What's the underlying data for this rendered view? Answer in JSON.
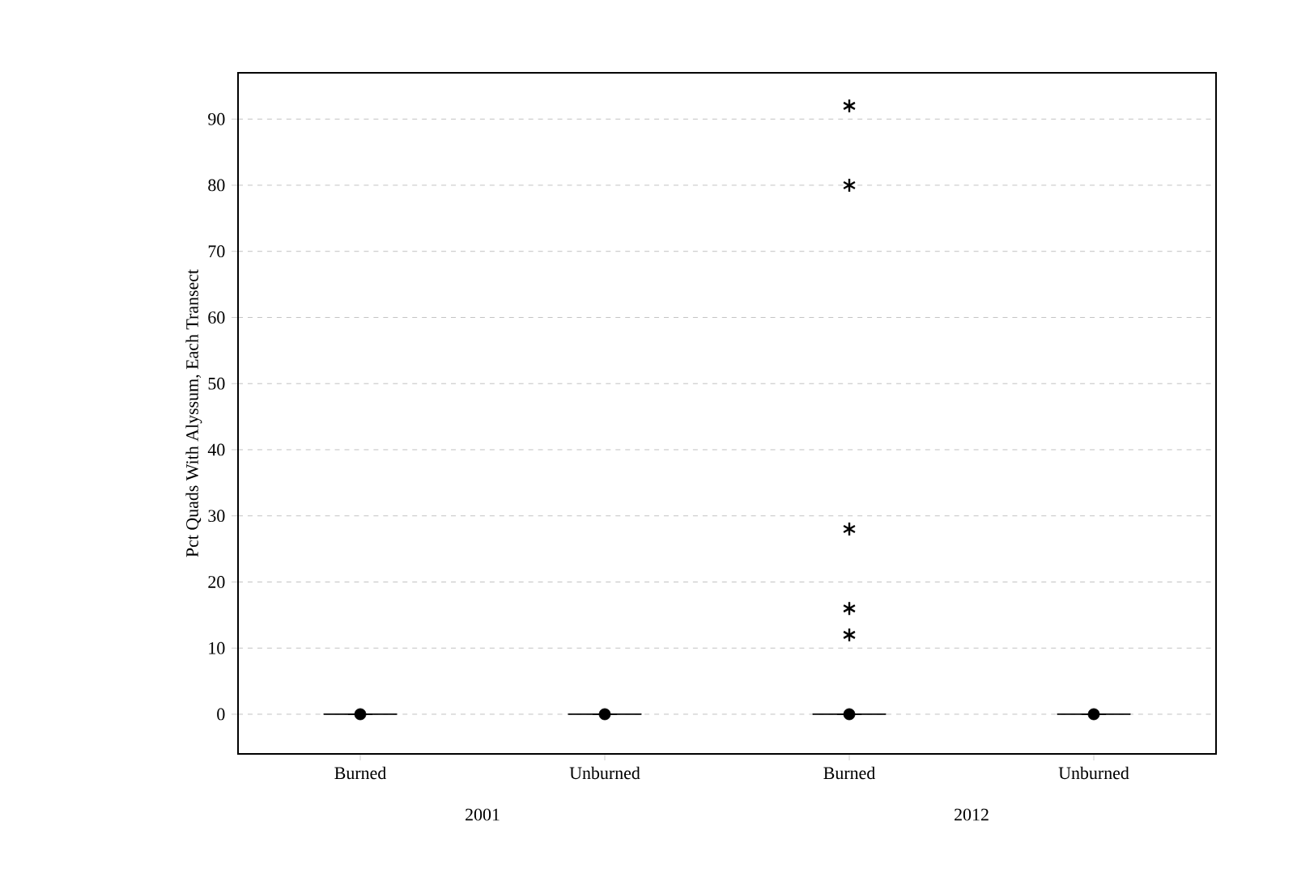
{
  "chart_data": {
    "type": "box",
    "ylabel": "Pct Quads With Alyssum, Each Transect",
    "categories": [
      "Burned",
      "Unburned",
      "Burned",
      "Unburned"
    ],
    "annotations": [
      "2001",
      "2012"
    ],
    "boxes": [
      {
        "low": 0,
        "q1": 0,
        "median": 0,
        "q3": 0,
        "high": 0,
        "mean": 0
      },
      {
        "low": 0,
        "q1": 0,
        "median": 0,
        "q3": 0,
        "high": 0,
        "mean": 0
      },
      {
        "low": 0,
        "q1": 0,
        "median": 0,
        "q3": 0,
        "high": 0,
        "mean": 0,
        "outliers": [
          92,
          80,
          28,
          16,
          12
        ]
      },
      {
        "low": 0,
        "q1": 0,
        "median": 0,
        "q3": 0,
        "high": 0,
        "mean": 0
      }
    ],
    "ylim": [
      -6,
      97
    ],
    "yticks": [
      0,
      10,
      20,
      30,
      40,
      50,
      60,
      70,
      80,
      90
    ],
    "grid": "y"
  }
}
